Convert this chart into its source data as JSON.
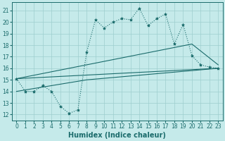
{
  "title": "",
  "xlabel": "Humidex (Indice chaleur)",
  "ylabel": "",
  "bg_color": "#c5eaea",
  "grid_color": "#9ecece",
  "line_color": "#1a6b6b",
  "xlim": [
    -0.5,
    23.5
  ],
  "ylim": [
    11.5,
    21.7
  ],
  "yticks": [
    12,
    13,
    14,
    15,
    16,
    17,
    18,
    19,
    20,
    21
  ],
  "xticks": [
    0,
    1,
    2,
    3,
    4,
    5,
    6,
    7,
    8,
    9,
    10,
    11,
    12,
    13,
    14,
    15,
    16,
    17,
    18,
    19,
    20,
    21,
    22,
    23
  ],
  "series_main": {
    "x": [
      0,
      1,
      2,
      3,
      4,
      5,
      6,
      7,
      8,
      9,
      10,
      11,
      12,
      13,
      14,
      15,
      16,
      17,
      18,
      19,
      20,
      21,
      22,
      23
    ],
    "y": [
      15.1,
      14.0,
      14.0,
      14.5,
      14.0,
      12.7,
      12.1,
      12.4,
      17.4,
      20.2,
      19.5,
      20.0,
      20.3,
      20.2,
      21.2,
      19.7,
      20.3,
      20.7,
      18.1,
      19.8,
      17.1,
      16.3,
      16.1,
      16.0
    ]
  },
  "series_line1": {
    "x": [
      0,
      23
    ],
    "y": [
      15.1,
      16.0
    ]
  },
  "series_line2": {
    "x": [
      0,
      20,
      23
    ],
    "y": [
      15.1,
      18.1,
      16.3
    ]
  },
  "series_line3": {
    "x": [
      0,
      8,
      23
    ],
    "y": [
      14.0,
      15.0,
      16.0
    ]
  }
}
